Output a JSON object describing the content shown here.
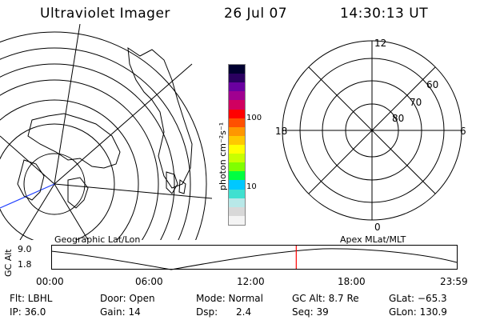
{
  "header": {
    "instrument": "Ultraviolet Imager",
    "date": "26 Jul 07",
    "time": "14:30:13 UT"
  },
  "colorbar": {
    "unit_label": "photon cm⁻²s⁻¹",
    "tick_100": "100",
    "tick_10": "10",
    "colors": [
      "#f4f4f4",
      "#d8d8d8",
      "#b8e8e8",
      "#40e0d0",
      "#00c8ff",
      "#00ff40",
      "#80ff00",
      "#c8ff00",
      "#ffff00",
      "#ffc800",
      "#ff9600",
      "#ff5000",
      "#ff0000",
      "#d00060",
      "#a00090",
      "#6a00a0",
      "#2a0060",
      "#000030"
    ]
  },
  "polar_plot": {
    "mlt_labels": {
      "top": "12",
      "left": "18",
      "right": "6",
      "bottom": "0"
    },
    "lat_labels": [
      "60",
      "70",
      "80"
    ]
  },
  "timeline": {
    "axis_label": "GC Alt",
    "left_caption": "Geographic Lat/Lon",
    "right_caption": "Apex MLat/MLT",
    "y_ticks": [
      "9.0",
      "1.8"
    ],
    "x_ticks": [
      "00:00",
      "06:00",
      "12:00",
      "18:00",
      "23:59"
    ],
    "current_marker_hour": 14.5,
    "marker_color": "#ff0000"
  },
  "info": {
    "filter": "Flt: LBHL",
    "ip": "IP: 36.0",
    "door": "Door: Open",
    "gain": "Gain: 14",
    "mode": "Mode: Normal",
    "dsp": "Dsp:      2.4",
    "gc_alt": "GC Alt: 8.7 Re",
    "seq": "Seq: 39",
    "glat": "GLat: −65.3",
    "glon": "GLon: 130.9"
  }
}
